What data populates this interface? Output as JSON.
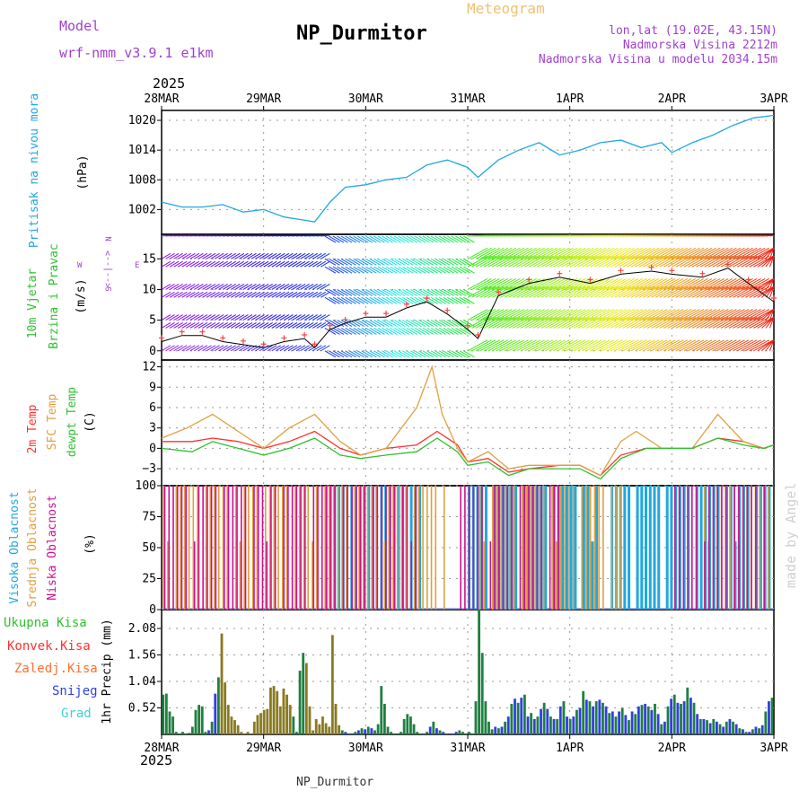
{
  "header": {
    "model_label": "Model",
    "model_name": "wrf-nmm_v3.9.1 e1km",
    "title": "NP_Durmitor",
    "subtitle": "Meteogram",
    "coords": "lon,lat (19.02E, 43.15N)",
    "altitude": "Nadmorska Visina 2212m",
    "model_altitude": "Nadmorska Visina u modelu 2034.15m",
    "year_top": "2025",
    "year_bottom": "2025",
    "footer_station": "NP_Durmitor",
    "watermark": "made by Angel"
  },
  "colors": {
    "purple": "#a040d0",
    "cyan": "#20a8e0",
    "green": "#30c030",
    "red": "#ff3030",
    "orange": "#e0a040",
    "magenta": "#d01090",
    "blue": "#3040e0",
    "darkgreen": "#208040",
    "bronze": "#8a7a20"
  },
  "chart_data": [
    {
      "type": "line",
      "id": "pressure",
      "ylabel": [
        "Pritisak na nivou mora",
        "(hPa)"
      ],
      "x_ticks": [
        "28MAR",
        "29MAR",
        "30MAR",
        "31MAR",
        "1APR",
        "2APR",
        "3APR"
      ],
      "ylim": [
        997,
        1022
      ],
      "yticks": [
        1002,
        1008,
        1014,
        1020
      ],
      "grid": true,
      "series": [
        {
          "x_day": [
            0,
            0.2,
            0.4,
            0.6,
            0.8,
            1.0,
            1.2,
            1.35,
            1.5,
            1.65,
            1.8,
            2.0,
            2.2,
            2.4,
            2.6,
            2.8,
            3.0,
            3.1,
            3.3,
            3.5,
            3.7,
            3.9,
            4.1,
            4.3,
            4.5,
            4.7,
            4.9,
            5.0,
            5.2,
            5.4,
            5.6,
            5.8,
            6.0
          ],
          "values": [
            1003.5,
            1002.5,
            1002.5,
            1003,
            1001.5,
            1002,
            1000.5,
            1000,
            999.5,
            1003.5,
            1006.5,
            1007,
            1008,
            1008.5,
            1011,
            1012,
            1010.5,
            1008.5,
            1012,
            1014,
            1015.5,
            1013,
            1014,
            1015.5,
            1016,
            1014.5,
            1015.5,
            1013.5,
            1015.5,
            1017,
            1019,
            1020.5,
            1021
          ]
        }
      ]
    },
    {
      "type": "line",
      "id": "wind",
      "ylabel": [
        "10m Vjetar",
        "Brzina i Pravac",
        "(m/s)"
      ],
      "compass": [
        "N",
        "W",
        "E",
        "S"
      ],
      "ylim": [
        -1.5,
        19
      ],
      "yticks": [
        0,
        5,
        10,
        15
      ],
      "grid": true,
      "series": [
        {
          "name": "speed",
          "x_day": [
            0,
            0.2,
            0.4,
            0.6,
            0.8,
            1.0,
            1.2,
            1.4,
            1.5,
            1.65,
            1.8,
            2.0,
            2.2,
            2.4,
            2.6,
            2.8,
            3.0,
            3.1,
            3.3,
            3.6,
            3.9,
            4.2,
            4.5,
            4.8,
            5.0,
            5.3,
            5.55,
            5.75,
            6.0
          ],
          "values": [
            1.5,
            2.5,
            2.5,
            1.5,
            1,
            0.5,
            1.5,
            2,
            0.5,
            3.5,
            4.5,
            5.5,
            5.5,
            7,
            8,
            6,
            3.5,
            2,
            9,
            11,
            12,
            11,
            12.5,
            13,
            12.5,
            12,
            13.5,
            11,
            8
          ]
        }
      ]
    },
    {
      "type": "line",
      "id": "temperature",
      "ylabel": [
        "2m Temp",
        "SFC Temp",
        "dewpt Temp",
        "(C)"
      ],
      "ylim": [
        -5.5,
        13
      ],
      "yticks": [
        -3,
        0,
        3,
        6,
        9,
        12
      ],
      "grid": true,
      "series": [
        {
          "name": "2m Temp",
          "x_day": [
            0,
            0.3,
            0.5,
            0.75,
            1.0,
            1.25,
            1.5,
            1.75,
            1.95,
            2.2,
            2.5,
            2.7,
            2.9,
            3.0,
            3.2,
            3.4,
            3.6,
            3.9,
            4.1,
            4.3,
            4.5,
            4.75,
            5.0,
            5.2,
            5.45,
            5.7,
            5.9,
            6.0
          ],
          "values": [
            1,
            1,
            1.5,
            1,
            0,
            1,
            2.5,
            0,
            -1,
            0,
            0.5,
            2.5,
            0.5,
            -2,
            -1.5,
            -3.5,
            -3,
            -2.5,
            -2.5,
            -4,
            -1,
            0,
            0,
            0,
            1.5,
            1,
            0,
            0.5
          ]
        },
        {
          "name": "SFC Temp",
          "x_day": [
            0,
            0.25,
            0.5,
            0.75,
            1.0,
            1.25,
            1.5,
            1.75,
            1.95,
            2.2,
            2.5,
            2.65,
            2.75,
            2.9,
            3.0,
            3.2,
            3.4,
            3.6,
            3.9,
            4.1,
            4.3,
            4.5,
            4.65,
            4.9,
            5.2,
            5.45,
            5.7,
            5.9,
            6.0
          ],
          "values": [
            1.5,
            3,
            5,
            2.5,
            0,
            3,
            5,
            1,
            -1,
            0,
            6,
            12,
            5,
            0,
            -2,
            -0.5,
            -3,
            -2.5,
            -2.5,
            -2.5,
            -4,
            1,
            2.5,
            0,
            0,
            5,
            1,
            0,
            0.5
          ]
        },
        {
          "name": "dewpt Temp",
          "x_day": [
            0,
            0.3,
            0.5,
            0.75,
            1.0,
            1.25,
            1.5,
            1.75,
            1.95,
            2.2,
            2.5,
            2.7,
            2.9,
            3.0,
            3.2,
            3.4,
            3.6,
            3.9,
            4.1,
            4.3,
            4.5,
            4.75,
            5.0,
            5.2,
            5.45,
            5.7,
            5.9,
            6.0
          ],
          "values": [
            0,
            -0.5,
            1,
            0,
            -1,
            0,
            1.5,
            -1,
            -1.5,
            -1,
            -0.5,
            1.5,
            -0.5,
            -2.5,
            -2,
            -4,
            -3,
            -3,
            -3,
            -4.5,
            -1.5,
            0,
            0,
            0,
            1.5,
            0.5,
            0,
            0.5
          ]
        }
      ]
    },
    {
      "type": "bar",
      "id": "clouds",
      "ylabel": [
        "Visoka Oblacnost",
        "Srednja Oblacnost",
        "Niska Oblacnost",
        "(%)"
      ],
      "ylim": [
        0,
        100
      ],
      "yticks": [
        0,
        25,
        50,
        75,
        100
      ],
      "grid": true,
      "series": [
        {
          "name": "Visoka Oblacnost",
          "x_day_ranges": [
            [
              1.6,
              2.55
            ],
            [
              3.0,
              4.3
            ],
            [
              4.4,
              6.0
            ]
          ],
          "pattern": "intermittent 100"
        },
        {
          "name": "Srednja Oblacnost",
          "x_day_ranges": [
            [
              0.0,
              2.8
            ],
            [
              3.1,
              4.5
            ],
            [
              5.3,
              6.0
            ]
          ],
          "pattern": "intermittent 100"
        },
        {
          "name": "Niska Oblacnost",
          "x_day_ranges": [
            [
              0.0,
              2.5
            ],
            [
              2.9,
              3.9
            ],
            [
              5.0,
              5.9
            ]
          ],
          "pattern": "intermittent 100"
        }
      ]
    },
    {
      "type": "bar",
      "id": "precip",
      "ylabel": [
        "1hr Precip (mm)"
      ],
      "legend": [
        "Ukupna Kisa",
        "Konvek.Kisa",
        "Zaledj.Kisa",
        "Snijeg",
        "Grad"
      ],
      "ylim": [
        0,
        2.45
      ],
      "yticks": [
        0.52,
        1.04,
        1.56,
        2.08
      ],
      "grid": true,
      "hourly": {
        "total": [
          0.78,
          0.8,
          0.45,
          0.35,
          0.05,
          0.02,
          0.05,
          0.02,
          0.03,
          0.15,
          0.48,
          0.58,
          0.55,
          0.05,
          0.08,
          0.25,
          0.8,
          1.12,
          1.98,
          1.02,
          0.58,
          0.35,
          0.28,
          0.18,
          0.05,
          0.02,
          0.05,
          0.02,
          0.25,
          0.38,
          0.42,
          0.48,
          0.5,
          0.92,
          0.95,
          0.85,
          0.55,
          0.9,
          0.78,
          0.58,
          0.35,
          0.05,
          1.25,
          1.6,
          1.4,
          0.55,
          0.08,
          0.3,
          0.2,
          0.35,
          0.22,
          0.15,
          1.95,
          0.6,
          0.18,
          0.08,
          0.05,
          0.02,
          0.02,
          0.05,
          0.08,
          0.12,
          0.1,
          0.15,
          0.12,
          0.08,
          0.2,
          0.95,
          0.6,
          0.15,
          0.05,
          0.02,
          0.02,
          0.05,
          0.3,
          0.4,
          0.35,
          0.2,
          0.05,
          0.02,
          0.02,
          0.05,
          0.15,
          0.25,
          0.12,
          0.08,
          0.05,
          0.02,
          0.02,
          0.02,
          0.05,
          0.08,
          0.05,
          0.02,
          0.05,
          0.02,
          0.65,
          2.45,
          1.6,
          0.65,
          0.25,
          0.1,
          0.15,
          0.12,
          0.15,
          0.25,
          0.35,
          0.6,
          0.7,
          0.62,
          0.72,
          0.78,
          0.35,
          0.42,
          0.3,
          0.35,
          0.5,
          0.62,
          0.5,
          0.35,
          0.3,
          0.3,
          0.55,
          0.65,
          0.35,
          0.3,
          0.35,
          0.48,
          0.52,
          0.85,
          0.68,
          0.65,
          0.55,
          0.65,
          0.68,
          0.62,
          0.55,
          0.42,
          0.45,
          0.35,
          0.45,
          0.52,
          0.38,
          0.28,
          0.45,
          0.4,
          0.55,
          0.58,
          0.6,
          0.55,
          0.48,
          0.6,
          0.4,
          0.2,
          0.25,
          0.55,
          0.7,
          0.78,
          0.62,
          0.6,
          0.65,
          0.92,
          0.72,
          0.62,
          0.4,
          0.3,
          0.3,
          0.28,
          0.22,
          0.3,
          0.25,
          0.2,
          0.15,
          0.25,
          0.3,
          0.25,
          0.2,
          0.12,
          0.1,
          0.05,
          0.05,
          0.1,
          0.15,
          0.12,
          0.18,
          0.45,
          0.65,
          0.72
        ],
        "snow_day_ranges": [
          [
            0.4,
            0.65
          ],
          [
            1.65,
            2.1
          ],
          [
            2.6,
            2.9
          ],
          [
            3.2,
            6.0
          ]
        ],
        "convective_day_ranges": [
          [
            0.55,
            1.25
          ],
          [
            1.4,
            1.75
          ]
        ]
      }
    }
  ]
}
